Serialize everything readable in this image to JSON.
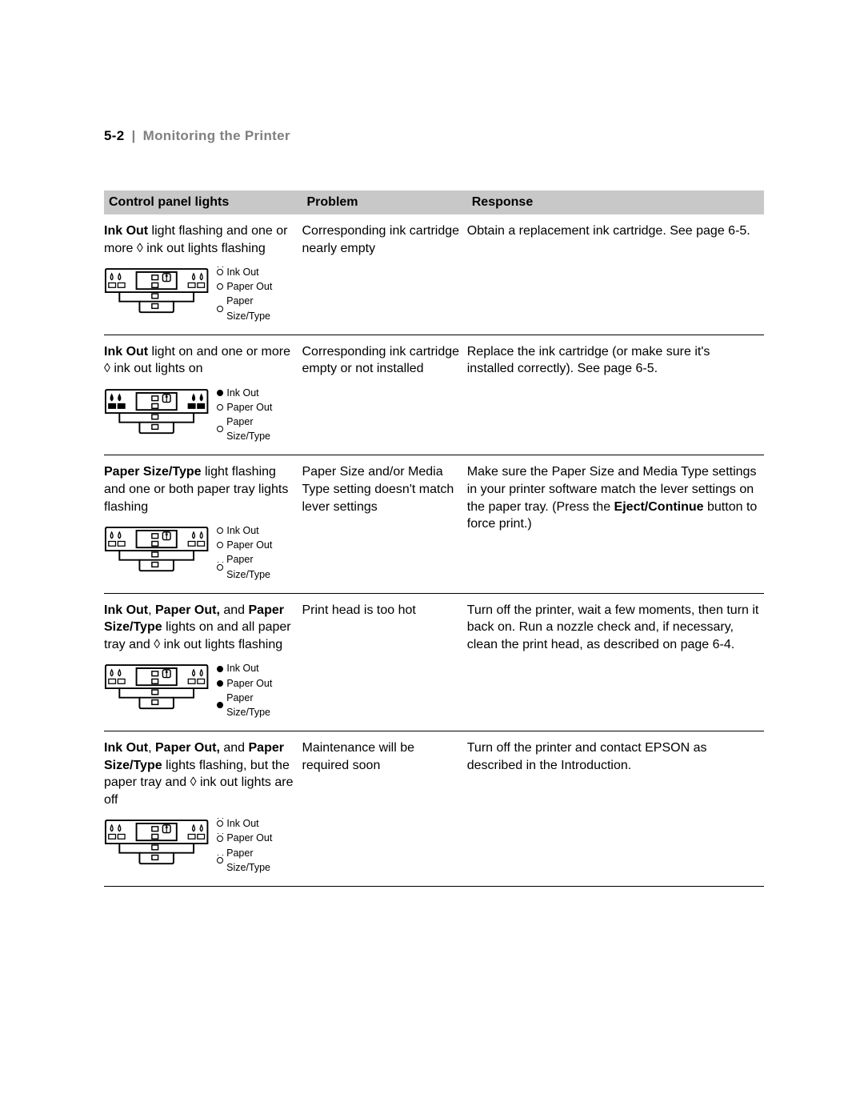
{
  "header": {
    "page_num": "5-2",
    "separator": "|",
    "title": "Monitoring the Printer"
  },
  "table": {
    "columns": [
      "Control panel lights",
      "Problem",
      "Response"
    ],
    "rows": [
      {
        "desc_pre": "Ink Out",
        "desc_post": " light flashing and one or more ",
        "desc_icon_post": " ink out lights flashing",
        "problem": "Corresponding ink cartridge nearly empty",
        "response": "Obtain a replacement ink cartridge. See page 6-5.",
        "legend": [
          {
            "s": "flash",
            "t": "Ink Out"
          },
          {
            "s": "open",
            "t": "Paper Out"
          },
          {
            "s": "open",
            "t": "Paper Size/Type"
          }
        ],
        "diag": {
          "drops": "flash",
          "trays": "off",
          "center2": "off",
          "bottom": "off",
          "drop_style": "outline"
        }
      },
      {
        "desc_pre": "Ink Out",
        "desc_post": " light on and one or more ",
        "desc_icon_post": " ink out lights on",
        "problem": "Corresponding ink cartridge empty or not installed",
        "response": "Replace the ink cartridge (or make sure it's installed correctly). See page 6-5.",
        "legend": [
          {
            "s": "filled",
            "t": "Ink Out"
          },
          {
            "s": "open",
            "t": "Paper Out"
          },
          {
            "s": "open",
            "t": "Paper Size/Type"
          }
        ],
        "diag": {
          "drops": "on",
          "trays": "solid",
          "center2": "off",
          "bottom": "off",
          "drop_style": "outline"
        }
      },
      {
        "desc_pre": "Paper Size/Type",
        "desc_post": " light flashing and one or both paper tray lights flashing",
        "desc_icon_post": "",
        "problem": "Paper Size and/or Media Type setting doesn't match lever settings",
        "response_pre": "Make sure the Paper Size and Media Type settings in your printer software match the lever settings on the paper tray. (Press the ",
        "response_bold": "Eject/Continue",
        "response_post": " button to force print.)",
        "legend": [
          {
            "s": "open",
            "t": "Ink Out"
          },
          {
            "s": "open",
            "t": "Paper Out"
          },
          {
            "s": "flash",
            "t": "Paper Size/Type"
          }
        ],
        "diag": {
          "drops": "off",
          "trays": "off",
          "center2": "flash",
          "bottom": "flash",
          "drop_style": "outline"
        }
      },
      {
        "desc_pre": "Ink Out",
        "desc_mid1": ", ",
        "desc_b2": "Paper Out,",
        "desc_mid2": " and ",
        "desc_b3": "Paper Size/Type",
        "desc_post": " lights on and all paper tray and ",
        "desc_icon_post": " ink out lights flashing",
        "problem": "Print head is too hot",
        "response": "Turn off the printer, wait a few moments, then turn it back on. Run a nozzle check and, if necessary, clean the print head, as described on page 6-4.",
        "legend": [
          {
            "s": "filled",
            "t": "Ink Out"
          },
          {
            "s": "filled",
            "t": "Paper Out"
          },
          {
            "s": "filled",
            "t": "Paper Size/Type"
          }
        ],
        "diag": {
          "drops": "flash",
          "trays": "flash",
          "center2": "flash",
          "bottom": "flash",
          "drop_style": "outline"
        }
      },
      {
        "desc_pre": "Ink Out",
        "desc_mid1": ", ",
        "desc_b2": "Paper Out,",
        "desc_mid2": " and ",
        "desc_b3": "Paper Size/Type",
        "desc_post": " lights flashing, but the paper tray and ",
        "desc_icon_post": " ink out lights are off",
        "problem": "Maintenance will be required soon",
        "response": "Turn off the printer and contact EPSON as described in the Introduction.",
        "legend": [
          {
            "s": "flash",
            "t": "Ink Out"
          },
          {
            "s": "flash",
            "t": "Paper Out"
          },
          {
            "s": "flash",
            "t": "Paper Size/Type"
          }
        ],
        "diag": {
          "drops": "off",
          "trays": "off",
          "center2": "off",
          "bottom": "off",
          "drop_style": "outline"
        }
      }
    ]
  },
  "style": {
    "body_bg": "#ffffff",
    "header_gray": "#808080",
    "thead_bg": "#c8c8c8",
    "font_body": 16,
    "font_legend": 12.5,
    "font_header": 17
  }
}
